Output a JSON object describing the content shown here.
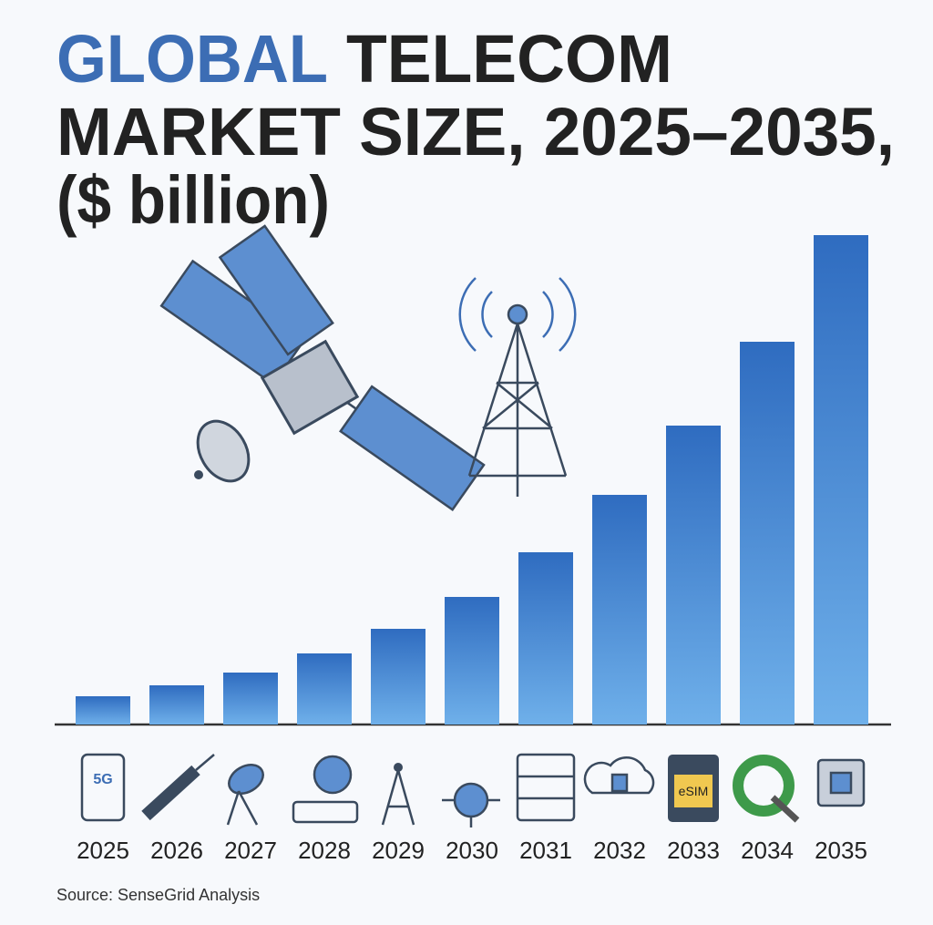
{
  "chart_data": {
    "type": "bar",
    "title_highlight": "GLOBAL",
    "title": "TELECOM",
    "title_line2": "MARKET SIZE, 2025–2035,",
    "subtitle": "($ billion)",
    "source": "Source: SenseGrid Analysis",
    "categories": [
      "2025",
      "2026",
      "2027",
      "2028",
      "2029",
      "2030",
      "2031",
      "2032",
      "2033",
      "2034",
      "2035"
    ],
    "values": [
      31,
      43,
      57,
      78,
      105,
      140,
      189,
      252,
      328,
      420,
      537
    ],
    "color": "#2f6cc0"
  }
}
